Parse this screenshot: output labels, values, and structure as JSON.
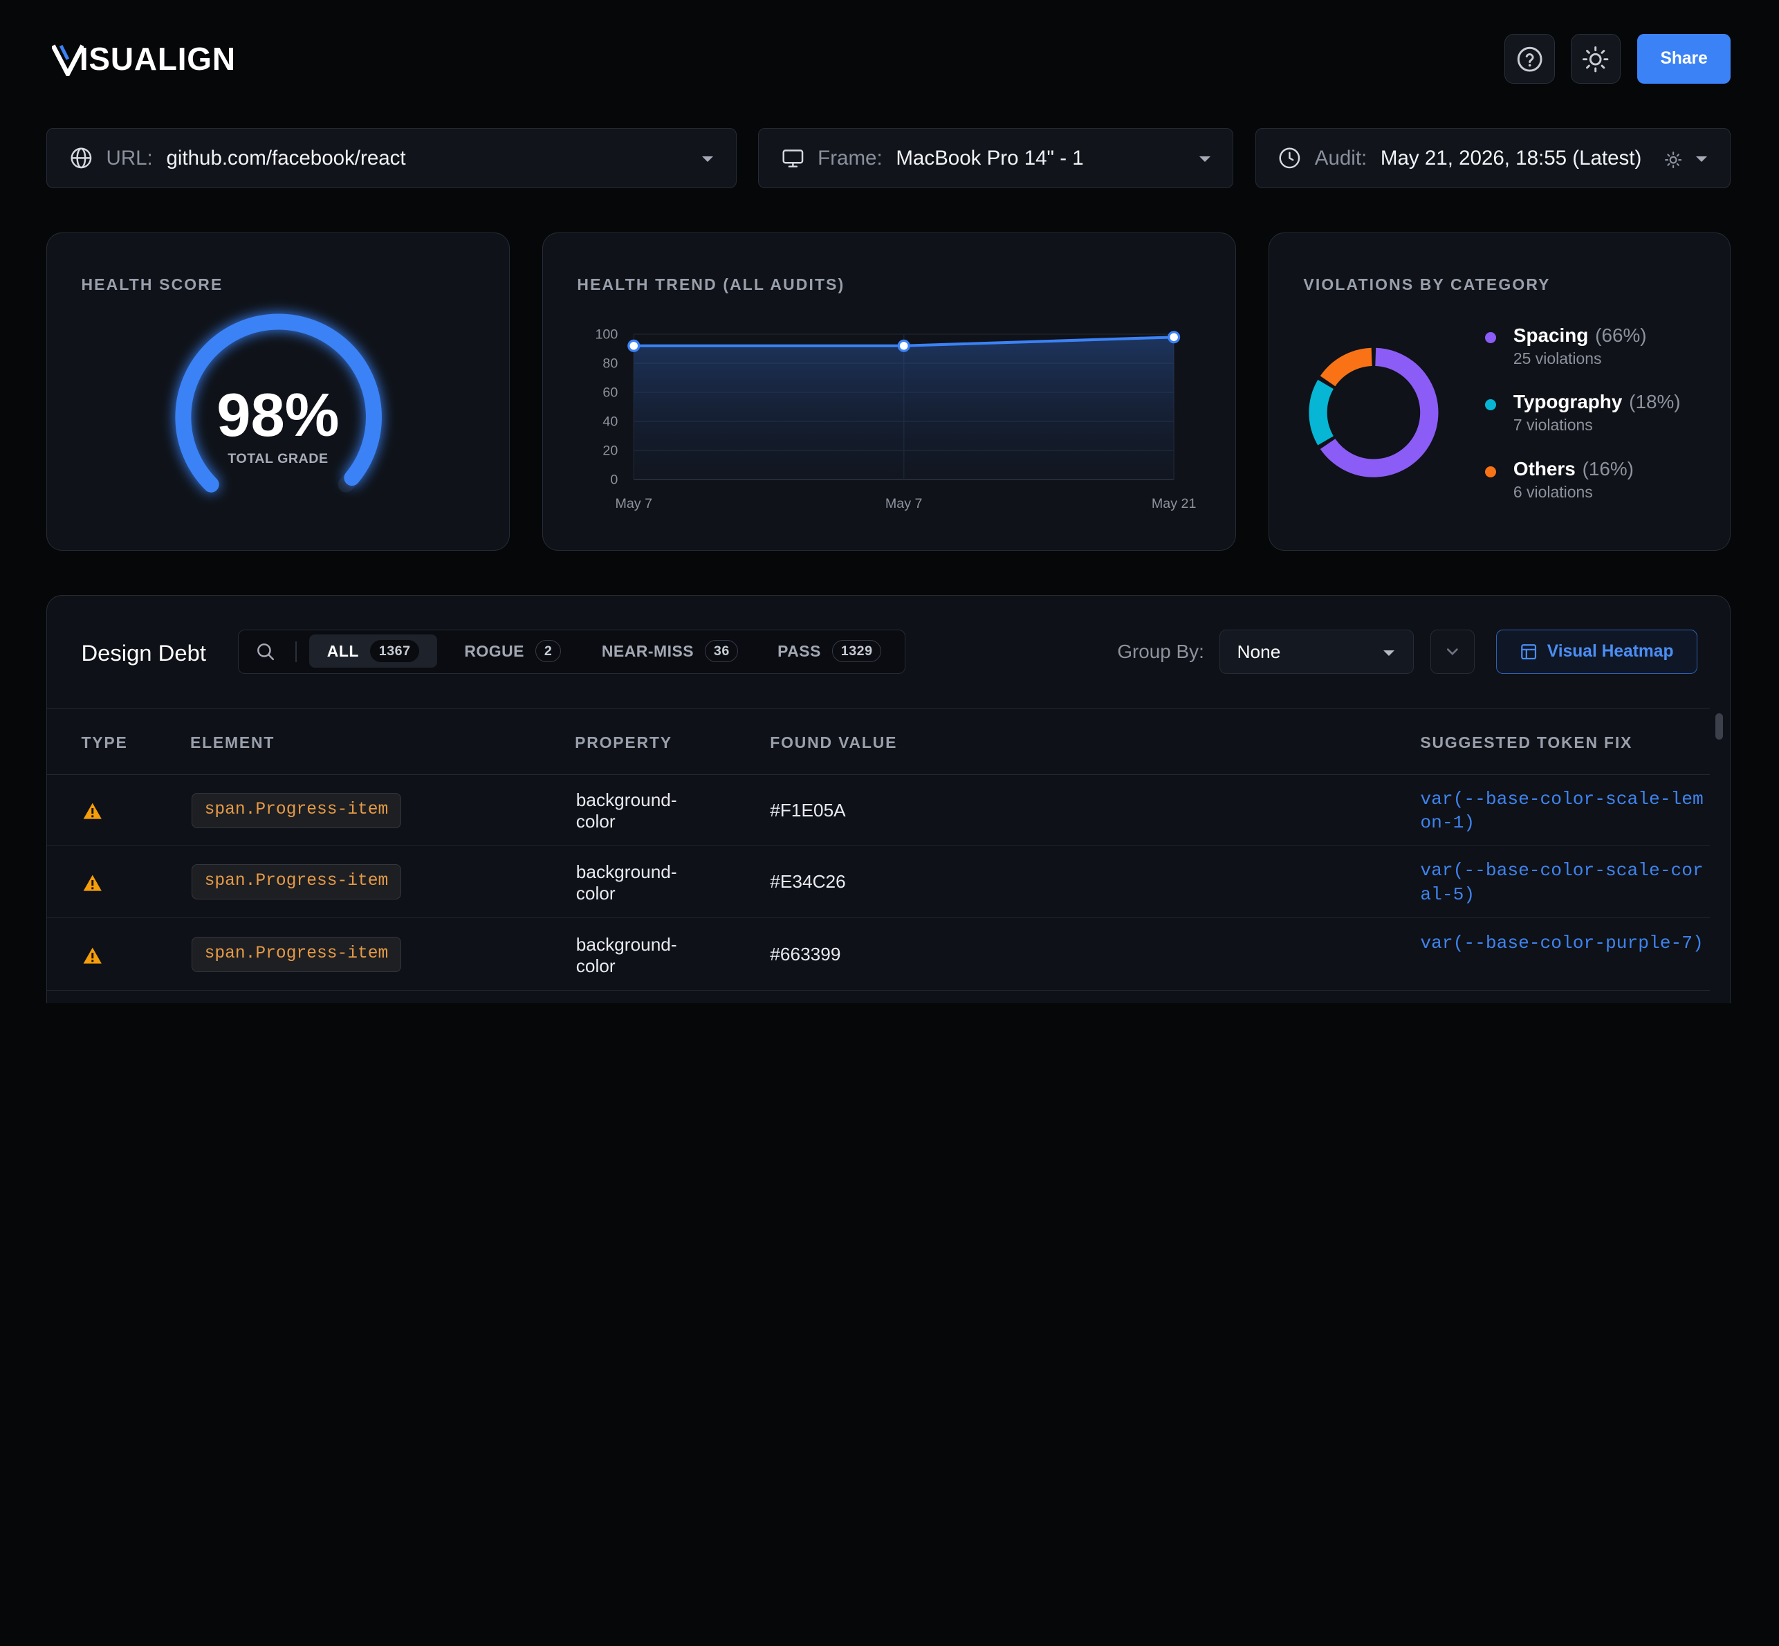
{
  "app": {
    "name": "ISUALIGN",
    "logo_mark": "V"
  },
  "header": {
    "share_label": "Share",
    "help_icon": "help-icon",
    "theme_icon": "sun-icon"
  },
  "selectors": {
    "url": {
      "label": "URL:",
      "value": "github.com/facebook/react"
    },
    "frame": {
      "label": "Frame:",
      "value": "MacBook Pro 14\" - 1"
    },
    "audit": {
      "label": "Audit:",
      "value": "May 21, 2026, 18:55 (Latest)"
    }
  },
  "health_score": {
    "title": "HEALTH SCORE",
    "value": "98%",
    "fraction": 0.98,
    "subtitle": "TOTAL GRADE"
  },
  "trend": {
    "title": "HEALTH TREND (ALL AUDITS)"
  },
  "chart_data": {
    "type": "area",
    "x": [
      "May 7",
      "May 7",
      "May 21"
    ],
    "y": [
      92,
      92,
      98
    ],
    "ylim": [
      0,
      100
    ],
    "yticks": [
      100,
      80,
      60,
      40,
      20,
      0
    ],
    "title": "",
    "xlabel": "",
    "ylabel": "",
    "grid": true
  },
  "violations": {
    "title": "VIOLATIONS BY CATEGORY",
    "items": [
      {
        "name": "Spacing",
        "pct": "(66%)",
        "count": "25 violations",
        "value": 66,
        "color": "#8b5cf6"
      },
      {
        "name": "Typography",
        "pct": "(18%)",
        "count": "7 violations",
        "value": 18,
        "color": "#06b6d4"
      },
      {
        "name": "Others",
        "pct": "(16%)",
        "count": "6 violations",
        "value": 16,
        "color": "#f97316"
      }
    ]
  },
  "debt": {
    "title": "Design Debt",
    "filters": [
      {
        "label": "ALL",
        "count": "1367"
      },
      {
        "label": "ROGUE",
        "count": "2"
      },
      {
        "label": "NEAR-MISS",
        "count": "36"
      },
      {
        "label": "PASS",
        "count": "1329"
      }
    ],
    "group_by_label": "Group By:",
    "group_by_value": "None",
    "heatmap_label": "Visual Heatmap",
    "columns": [
      "TYPE",
      "ELEMENT",
      "PROPERTY",
      "FOUND VALUE",
      "SUGGESTED TOKEN FIX"
    ],
    "rows": [
      {
        "element": "span.Progress-item",
        "property": "background-color",
        "found": "#F1E05A",
        "fix": "var(--base-color-scale-lemon-1)"
      },
      {
        "element": "span.Progress-item",
        "property": "background-color",
        "found": "#E34C26",
        "fix": "var(--base-color-scale-coral-5)"
      },
      {
        "element": "span.Progress-item",
        "property": "background-color",
        "found": "#663399",
        "fix": "var(--base-color-purple-7)"
      }
    ]
  }
}
